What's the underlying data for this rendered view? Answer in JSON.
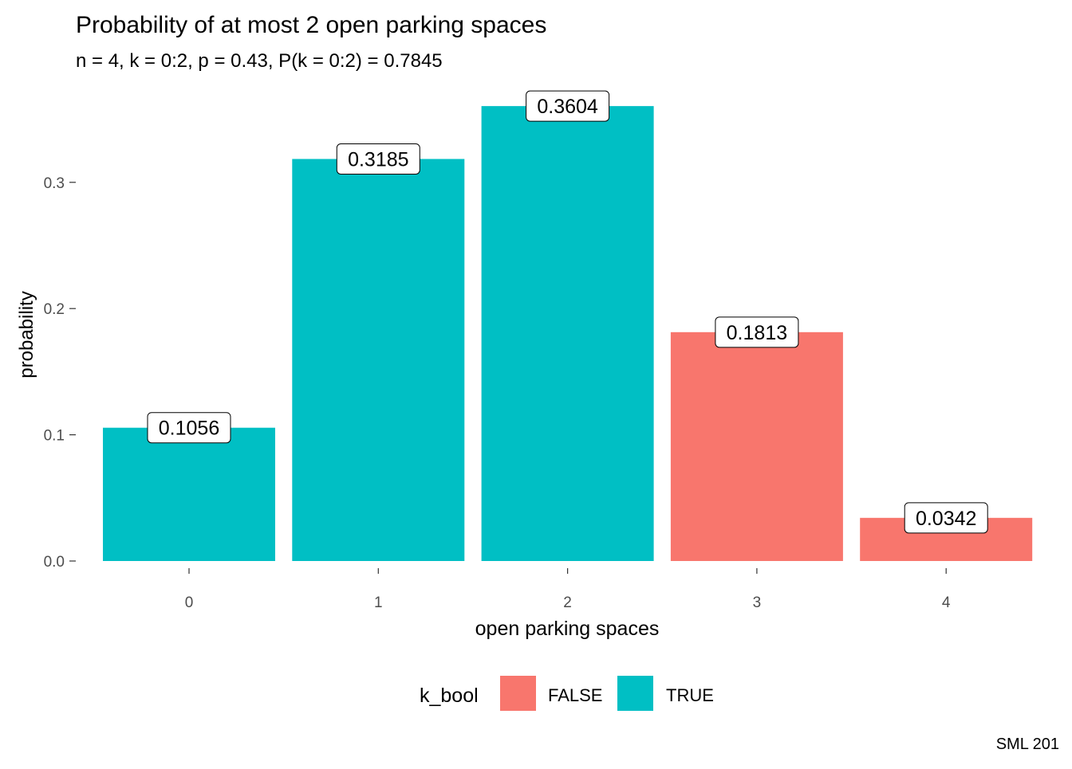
{
  "chart_data": {
    "type": "bar",
    "title": "Probability of at most 2 open parking spaces",
    "subtitle": "n = 4, k = 0:2, p = 0.43, P(k = 0:2) = 0.7845",
    "xlabel": "open parking spaces",
    "ylabel": "probability",
    "caption": "SML 201",
    "categories": [
      "0",
      "1",
      "2",
      "3",
      "4"
    ],
    "values": [
      0.1056,
      0.3185,
      0.3604,
      0.1813,
      0.0342
    ],
    "value_labels": [
      "0.1056",
      "0.3185",
      "0.3604",
      "0.1813",
      "0.0342"
    ],
    "groups": [
      "TRUE",
      "TRUE",
      "TRUE",
      "FALSE",
      "FALSE"
    ],
    "ylim": [
      0,
      0.36
    ],
    "yticks": [
      0.0,
      0.1,
      0.2,
      0.3
    ],
    "ytick_labels": [
      "0.0",
      "0.1",
      "0.2",
      "0.3"
    ],
    "grid": false,
    "legend": {
      "title": "k_bool",
      "position": "bottom",
      "entries": [
        {
          "label": "FALSE",
          "color": "#F8766D"
        },
        {
          "label": "TRUE",
          "color": "#00BFC4"
        }
      ]
    },
    "colors": {
      "FALSE": "#F8766D",
      "TRUE": "#00BFC4"
    }
  }
}
